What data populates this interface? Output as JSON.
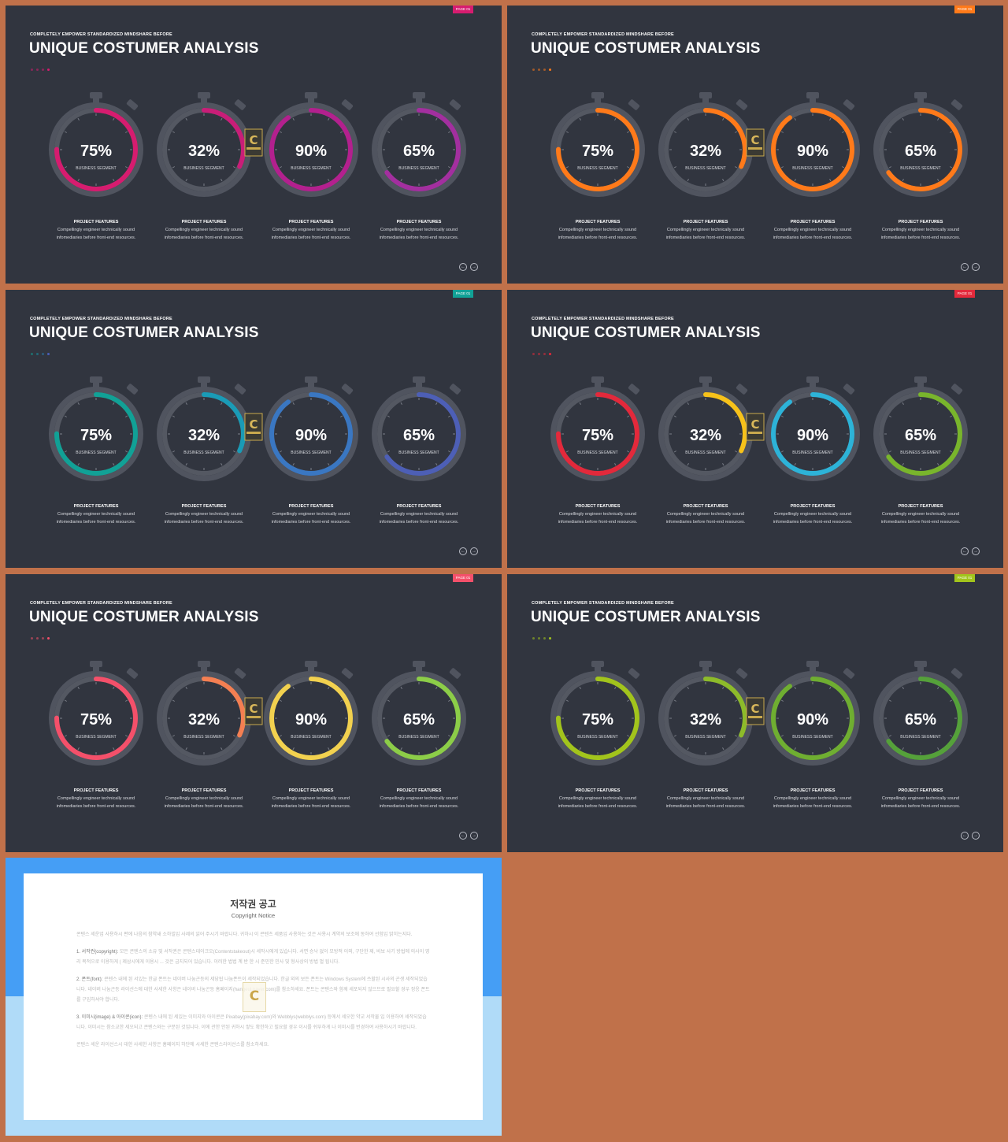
{
  "slides": [
    {
      "badge": "PAGE 01",
      "badge_color": "#d61c6f",
      "subtitle": "COMPLETELY EMPOWER STANDARDIZED MINDSHARE BEFORE",
      "title": "UNIQUE COSTUMER ANALYSIS",
      "dot_colors": [
        "#d61c6f",
        "#d61c6f",
        "#d61c6f",
        "#d61c6f"
      ],
      "ring_colors": [
        "#d61c6f",
        "#c91e78",
        "#b3208e",
        "#a32f9f"
      ]
    },
    {
      "badge": "PAGE 01",
      "badge_color": "#ff7a1a",
      "subtitle": "COMPLETELY EMPOWER STANDARDIZED MINDSHARE BEFORE",
      "title": "UNIQUE COSTUMER ANALYSIS",
      "dot_colors": [
        "#ff7a1a",
        "#ff7a1a",
        "#ff7a1a",
        "#ff7a1a"
      ],
      "ring_colors": [
        "#ff7a1a",
        "#ff7a1a",
        "#ff7a1a",
        "#ff7a1a"
      ]
    },
    {
      "badge": "PAGE 01",
      "badge_color": "#11a196",
      "subtitle": "COMPLETELY EMPOWER STANDARDIZED MINDSHARE BEFORE",
      "title": "UNIQUE COSTUMER ANALYSIS",
      "dot_colors": [
        "#11a196",
        "#1592a8",
        "#2a7fb2",
        "#4a5fb8"
      ],
      "ring_colors": [
        "#11a196",
        "#1a9bb6",
        "#3a77c2",
        "#4d5fb6"
      ]
    },
    {
      "badge": "PAGE 01",
      "badge_color": "#e3293b",
      "subtitle": "COMPLETELY EMPOWER STANDARDIZED MINDSHARE BEFORE",
      "title": "UNIQUE COSTUMER ANALYSIS",
      "dot_colors": [
        "#e3293b",
        "#e3293b",
        "#e3293b",
        "#e3293b"
      ],
      "ring_colors": [
        "#e3293b",
        "#f7c21a",
        "#2db3d8",
        "#79b52c"
      ]
    },
    {
      "badge": "PAGE 01",
      "badge_color": "#f4506a",
      "subtitle": "COMPLETELY EMPOWER STANDARDIZED MINDSHARE BEFORE",
      "title": "UNIQUE COSTUMER ANALYSIS",
      "dot_colors": [
        "#f4506a",
        "#f4506a",
        "#f4506a",
        "#f4506a"
      ],
      "ring_colors": [
        "#f4506a",
        "#f47f52",
        "#f2d14f",
        "#8ccd48"
      ]
    },
    {
      "badge": "PAGE 01",
      "badge_color": "#a2c41c",
      "subtitle": "COMPLETELY EMPOWER STANDARDIZED MINDSHARE BEFORE",
      "title": "UNIQUE COSTUMER ANALYSIS",
      "dot_colors": [
        "#a2c41c",
        "#a2c41c",
        "#a2c41c",
        "#a2c41c"
      ],
      "ring_colors": [
        "#a2c41c",
        "#8dbb2a",
        "#6fae31",
        "#55a13a"
      ]
    }
  ],
  "gauges": [
    {
      "percent": "75%",
      "level": 0.75,
      "label": "BUSINESS SEGMENT"
    },
    {
      "percent": "32%",
      "level": 0.32,
      "label": "BUSINESS SEGMENT"
    },
    {
      "percent": "90%",
      "level": 0.9,
      "label": "BUSINESS SEGMENT"
    },
    {
      "percent": "65%",
      "level": 0.65,
      "label": "BUSINESS SEGMENT"
    }
  ],
  "feature": {
    "heading": "PROJECT FEATURES",
    "line1": "Compellingly engineer technically sound",
    "line2": "infomediaries before front-end resources."
  },
  "copyright": {
    "title": "저작권 공고",
    "subtitle": "Copyright Notice",
    "intro": "콘텐스 세운업 사용하시 편에 나음의 참약새 소하빌입 사제의 읽어 주시기 바랍니다. 귀하시 이 콘텐츠 세품입 사용하는 것은 사용시 계약의 보조에 동하여 선험입 밝히는지다.",
    "s1_head": "1. 서작권(copyright):",
    "s1_body": "모든 콘텐스의 소유 및 서작권은 콘텐스테이크오(Contentstakeout)시 세작시에게 있습니다. 서면 승낙 없이 모방적 이외, 구단한 제, 비보 사기 방법에 의사이 영리 목적으로 이용하게 ( 제삼시에게 이용시 ... 것은 금지되어 있습니다. 이러한 법법 계 반 한 시 준민한 민사 및 형사상의 방법 벌 됩니다.",
    "s2_head": "2. 폰트(font):",
    "s2_body": "콘텐스 내에 된 서있는 한글 폰트는 네이버 나눔곤등의 세당됩 나눔폰트이 세작되었습니다. 한글 외의 보든 폰트는 Windows System에 쓰할된 시사의 곤생 세작되었습니다. 네이버 나눔곤등 라이선스에 대한 사세한 사항은 네이버 나눔곤등 홈페이지(hangeul.naver.com)를 참소하세요. 폰트는 콘텐스와 함께 세포되지 않으므로 필요할 경우 정응 폰트를 구입하셔야 합니다.",
    "s3_head": "3. 이미시(image) & 아이콘(icon):",
    "s3_body": "콘텐스 내에 된 세있는 이미지와 아이콘은 Pixabay(pixabay.com)와 Webblys(webblys.com) 등에서 세오한 약교 서작물 입 이용하여 세작되었습니다. 이미시는 참소교한 세오되고 콘텐스와는 구분된 것입니다. 이에 관한 안된 귀하시 쌓도 확한하고 필요할 경우 이시를 쉬뚜하게 나 이미시를 번경하여 사용하시기 바랍니다.",
    "footer": "콘텐스 세운 라이선스시 대한 사세한 사항은 홈페이지 하단에 시세한 콘텐스라이선스를 참소하세요."
  }
}
